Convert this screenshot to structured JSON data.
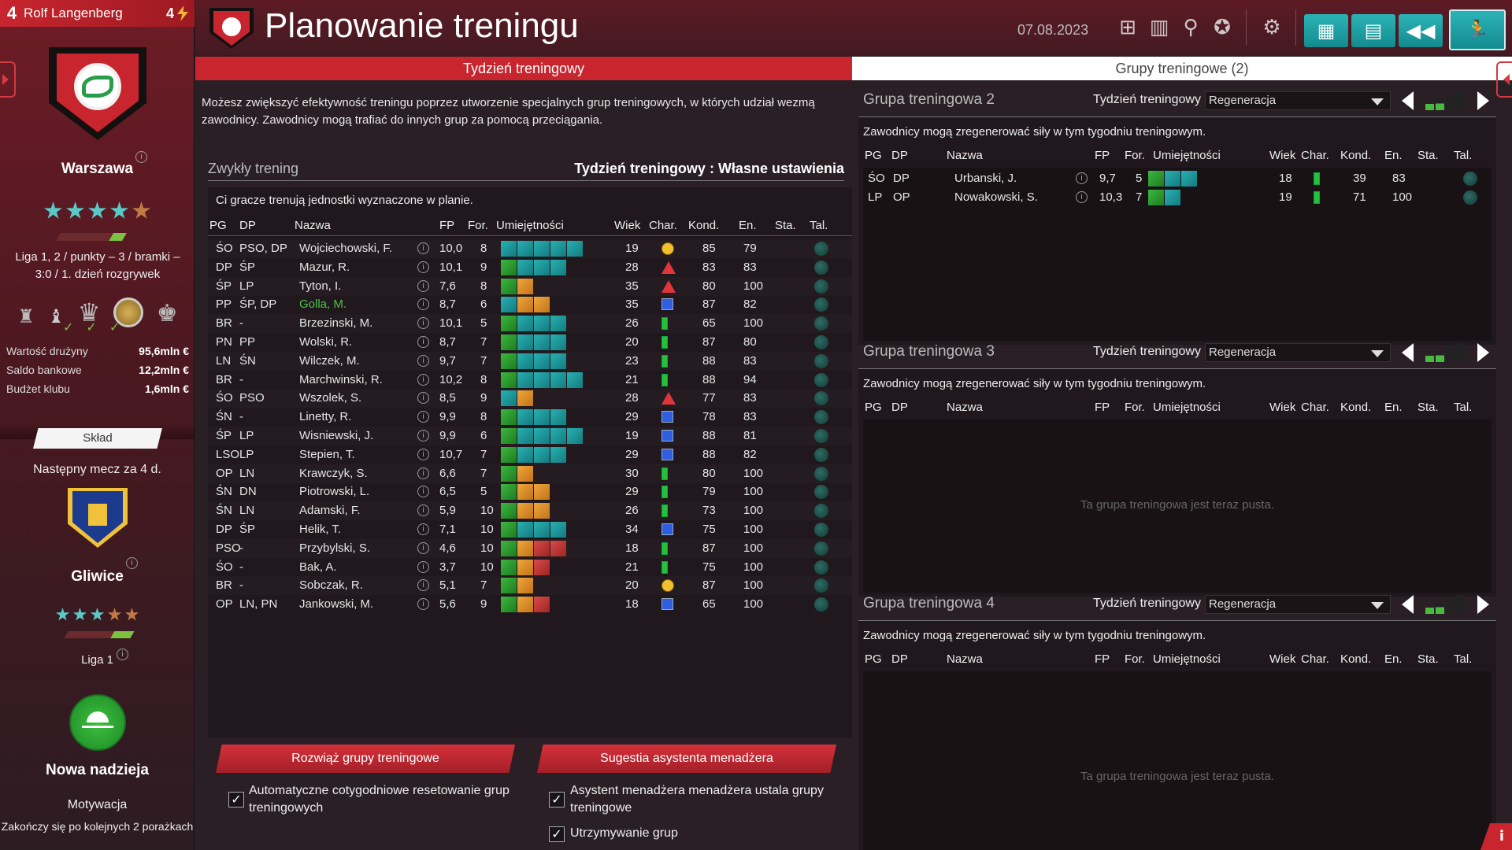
{
  "manager": {
    "number": "4",
    "name": "Rolf Langenberg",
    "level": "4"
  },
  "club": {
    "city": "Warszawa",
    "league_info": "Liga 1, 2 / punkty – 3 / bramki – 3:0 / 1. dzień rozgrywek",
    "stars": 4.5
  },
  "finance": [
    {
      "label": "Wartość drużyny",
      "value": "95,6mln €"
    },
    {
      "label": "Saldo bankowe",
      "value": "12,2mln €"
    },
    {
      "label": "Budżet klubu",
      "value": "1,6mln €"
    }
  ],
  "squad_label": "Skład",
  "next_match": {
    "text": "Następny mecz za 4 d.",
    "opponent": "Gliwice",
    "league": "Liga 1",
    "stars": 3.5
  },
  "motivation": {
    "title": "Nowa nadzieja",
    "label": "Motywacja",
    "desc": "Zakończy się po kolejnych 2 porażkach"
  },
  "header": {
    "title": "Planowanie treningu",
    "date": "07.08.2023"
  },
  "tabs": {
    "week": "Tydzień treningowy",
    "groups": "Grupy treningowe (2)"
  },
  "intro": "Możesz zwiększyć efektywność treningu poprzez utworzenie specjalnych grup treningowych, w których udział wezmą zawodnicy. Zawodnicy mogą trafiać do innych grup za pomocą przeciągania.",
  "standard": {
    "title": "Zwykły trening",
    "right": "Tydzień treningowy : Własne ustawienia",
    "desc": "Ci gracze trenują jednostki wyznaczone w planie."
  },
  "columns": {
    "pg": "PG",
    "dp": "DP",
    "name": "Nazwa",
    "fp": "FP",
    "for": "For.",
    "skills": "Umiejętności",
    "age": "Wiek",
    "char": "Char.",
    "kond": "Kond.",
    "en": "En.",
    "sta": "Sta.",
    "tal": "Tal."
  },
  "players": [
    {
      "pg": "ŚO",
      "dp": "PSO, DP",
      "name": "Wojciechowski, F.",
      "fp": "10,0",
      "for": "8",
      "age": "19",
      "char": "circle",
      "kond": "85",
      "en": "79",
      "skills": "ttttt"
    },
    {
      "pg": "DP",
      "dp": "ŚP",
      "name": "Mazur, R.",
      "fp": "10,1",
      "for": "9",
      "age": "28",
      "char": "tri",
      "kond": "83",
      "en": "83",
      "skills": "gttt"
    },
    {
      "pg": "ŚP",
      "dp": "LP",
      "name": "Tyton, I.",
      "fp": "7,6",
      "for": "8",
      "age": "35",
      "char": "tri",
      "kond": "80",
      "en": "100",
      "skills": "go"
    },
    {
      "pg": "PP",
      "dp": "ŚP, DP",
      "name": "Golla, M.",
      "fp": "8,7",
      "for": "6",
      "age": "35",
      "char": "sq",
      "kond": "87",
      "en": "82",
      "skills": "too",
      "green": true
    },
    {
      "pg": "BR",
      "dp": "-",
      "name": "Brzezinski, M.",
      "fp": "10,1",
      "for": "5",
      "age": "26",
      "char": "bar",
      "kond": "65",
      "en": "100",
      "skills": "gttt"
    },
    {
      "pg": "PN",
      "dp": "PP",
      "name": "Wolski, R.",
      "fp": "8,7",
      "for": "7",
      "age": "20",
      "char": "bar",
      "kond": "87",
      "en": "80",
      "skills": "gttt"
    },
    {
      "pg": "LN",
      "dp": "ŚN",
      "name": "Wilczek, M.",
      "fp": "9,7",
      "for": "7",
      "age": "23",
      "char": "bar",
      "kond": "88",
      "en": "83",
      "skills": "gttt"
    },
    {
      "pg": "BR",
      "dp": "-",
      "name": "Marchwinski, R.",
      "fp": "10,2",
      "for": "8",
      "age": "21",
      "char": "bar",
      "kond": "88",
      "en": "94",
      "skills": "gtttt"
    },
    {
      "pg": "ŚO",
      "dp": "PSO",
      "name": "Wszolek, S.",
      "fp": "8,5",
      "for": "9",
      "age": "28",
      "char": "tri",
      "kond": "77",
      "en": "83",
      "skills": "to"
    },
    {
      "pg": "ŚN",
      "dp": "-",
      "name": "Linetty, R.",
      "fp": "9,9",
      "for": "8",
      "age": "29",
      "char": "sq",
      "kond": "78",
      "en": "83",
      "skills": "gttt"
    },
    {
      "pg": "ŚP",
      "dp": "LP",
      "name": "Wisniewski, J.",
      "fp": "9,9",
      "for": "6",
      "age": "19",
      "char": "sq",
      "kond": "88",
      "en": "81",
      "skills": "gtttt"
    },
    {
      "pg": "LSO",
      "dp": "LP",
      "name": "Stepien, T.",
      "fp": "10,7",
      "for": "7",
      "age": "29",
      "char": "sq",
      "kond": "88",
      "en": "82",
      "skills": "gttt"
    },
    {
      "pg": "OP",
      "dp": "LN",
      "name": "Krawczyk, S.",
      "fp": "6,6",
      "for": "7",
      "age": "30",
      "char": "bar",
      "kond": "80",
      "en": "100",
      "skills": "go"
    },
    {
      "pg": "ŚN",
      "dp": "DN",
      "name": "Piotrowski, L.",
      "fp": "6,5",
      "for": "5",
      "age": "29",
      "char": "bar",
      "kond": "79",
      "en": "100",
      "skills": "goo"
    },
    {
      "pg": "ŚN",
      "dp": "LN",
      "name": "Adamski, F.",
      "fp": "5,9",
      "for": "10",
      "age": "26",
      "char": "bar",
      "kond": "73",
      "en": "100",
      "skills": "goo"
    },
    {
      "pg": "DP",
      "dp": "ŚP",
      "name": "Helik, T.",
      "fp": "7,1",
      "for": "10",
      "age": "34",
      "char": "sq",
      "kond": "75",
      "en": "100",
      "skills": "gttt"
    },
    {
      "pg": "PSO",
      "dp": "-",
      "name": "Przybylski, S.",
      "fp": "4,6",
      "for": "10",
      "age": "18",
      "char": "bar",
      "kond": "87",
      "en": "100",
      "skills": "gorr"
    },
    {
      "pg": "ŚO",
      "dp": "-",
      "name": "Bak, A.",
      "fp": "3,7",
      "for": "10",
      "age": "21",
      "char": "bar",
      "kond": "75",
      "en": "100",
      "skills": "gor"
    },
    {
      "pg": "BR",
      "dp": "-",
      "name": "Sobczak, R.",
      "fp": "5,1",
      "for": "7",
      "age": "20",
      "char": "circle",
      "kond": "87",
      "en": "100",
      "skills": "go"
    },
    {
      "pg": "OP",
      "dp": "LN, PN",
      "name": "Jankowski, M.",
      "fp": "5,6",
      "for": "9",
      "age": "18",
      "char": "sq",
      "kond": "65",
      "en": "100",
      "skills": "gor"
    }
  ],
  "buttons": {
    "dissolve": "Rozwiąż grupy treningowe",
    "suggest": "Sugestia asystenta menadżera"
  },
  "checks": {
    "auto_reset": "Automatyczne cotygodniowe resetowanie grup treningowych",
    "assistant": "Asystent menadżera menadżera ustala grupy treningowe",
    "keep": "Utrzymywanie grup"
  },
  "groups": [
    {
      "title": "Grupa treningowa 2",
      "week_label": "Tydzień treningowy",
      "select": "Regeneracja",
      "desc": "Zawodnicy mogą zregenerować siły w tym tygodniu treningowym.",
      "players": [
        {
          "pg": "ŚO",
          "dp": "DP",
          "name": "Urbanski, J.",
          "fp": "9,7",
          "for": "5",
          "age": "18",
          "kond": "39",
          "en": "83",
          "skills": "gtt"
        },
        {
          "pg": "LP",
          "dp": "OP",
          "name": "Nowakowski, S.",
          "fp": "10,3",
          "for": "7",
          "age": "19",
          "kond": "71",
          "en": "100",
          "skills": "gt"
        }
      ],
      "empty": ""
    },
    {
      "title": "Grupa treningowa 3",
      "week_label": "Tydzień treningowy",
      "select": "Regeneracja",
      "desc": "Zawodnicy mogą zregenerować siły w tym tygodniu treningowym.",
      "players": [],
      "empty": "Ta grupa treningowa jest teraz pusta."
    },
    {
      "title": "Grupa treningowa 4",
      "week_label": "Tydzień treningowy",
      "select": "Regeneracja",
      "desc": "Zawodnicy mogą zregenerować siły w tym tygodniu treningowym.",
      "players": [],
      "empty": "Ta grupa treningowa jest teraz pusta."
    }
  ],
  "colors": {
    "accent": "#c8252e",
    "teal": "#2cb3b7"
  }
}
